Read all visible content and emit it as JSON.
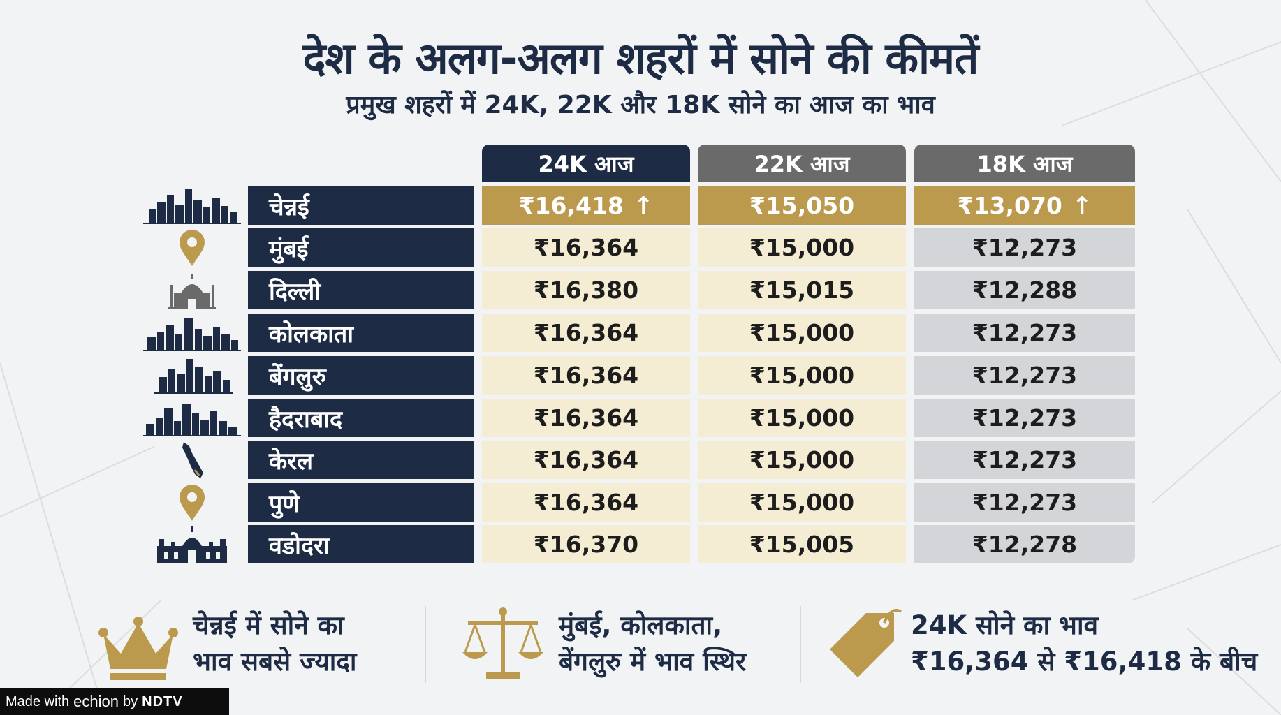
{
  "header": {
    "title": "देश के अलग-अलग शहरों में सोने की कीमतें",
    "subtitle": "प्रमुख शहरों में 24K, 22K और 18K सोने का आज का भाव"
  },
  "table": {
    "columns": [
      "24K आज",
      "22K आज",
      "18K आज"
    ],
    "rows": [
      {
        "city": "चेन्नई",
        "icon": "skyline-icon",
        "k24": "₹16,418",
        "k22": "₹15,050",
        "k18": "₹13,070",
        "up24": "↑",
        "up18": "↑"
      },
      {
        "city": "मुंबई",
        "icon": "location-pin-icon",
        "k24": "₹16,364",
        "k22": "₹15,000",
        "k18": "₹12,273"
      },
      {
        "city": "दिल्ली",
        "icon": "monument-icon",
        "k24": "₹16,380",
        "k22": "₹15,015",
        "k18": "₹12,288"
      },
      {
        "city": "कोलकाता",
        "icon": "skyline-icon",
        "k24": "₹16,364",
        "k22": "₹15,000",
        "k18": "₹12,273"
      },
      {
        "city": "बेंगलुरु",
        "icon": "skyline-icon",
        "k24": "₹16,364",
        "k22": "₹15,000",
        "k18": "₹12,273"
      },
      {
        "city": "हैदराबाद",
        "icon": "skyline-icon",
        "k24": "₹16,364",
        "k22": "₹15,000",
        "k18": "₹12,273"
      },
      {
        "city": "केरल",
        "icon": "kerala-map-icon",
        "k24": "₹16,364",
        "k22": "₹15,000",
        "k18": "₹12,273"
      },
      {
        "city": "पुणे",
        "icon": "location-pin-icon",
        "k24": "₹16,364",
        "k22": "₹15,000",
        "k18": "₹12,273"
      },
      {
        "city": "वडोदरा",
        "icon": "palace-icon",
        "k24": "₹16,370",
        "k22": "₹15,005",
        "k18": "₹12,278"
      }
    ]
  },
  "footer": {
    "notes": [
      {
        "icon": "crown-icon",
        "line1": "चेन्नई में सोने का",
        "line2": "भाव सबसे ज्यादा"
      },
      {
        "icon": "scales-icon",
        "line1": "मुंबई, कोलकाता,",
        "line2": "बेंगलुरु में भाव स्थिर"
      },
      {
        "icon": "price-tag-icon",
        "line1": "24K सोने का भाव",
        "line2": "₹16,364 से ₹16,418 के बीच"
      }
    ]
  },
  "badge": {
    "made_with": "Made with",
    "brand": "echion",
    "by": "by",
    "network": "NDTV"
  },
  "colors": {
    "navy": "#1e2b44",
    "gold": "#bb9a4e",
    "cream": "#f4ecd3",
    "grey": "#d4d5d9",
    "head24": "#1e2b44",
    "head22": "#6a6a6a",
    "head18": "#6a6a6a"
  }
}
